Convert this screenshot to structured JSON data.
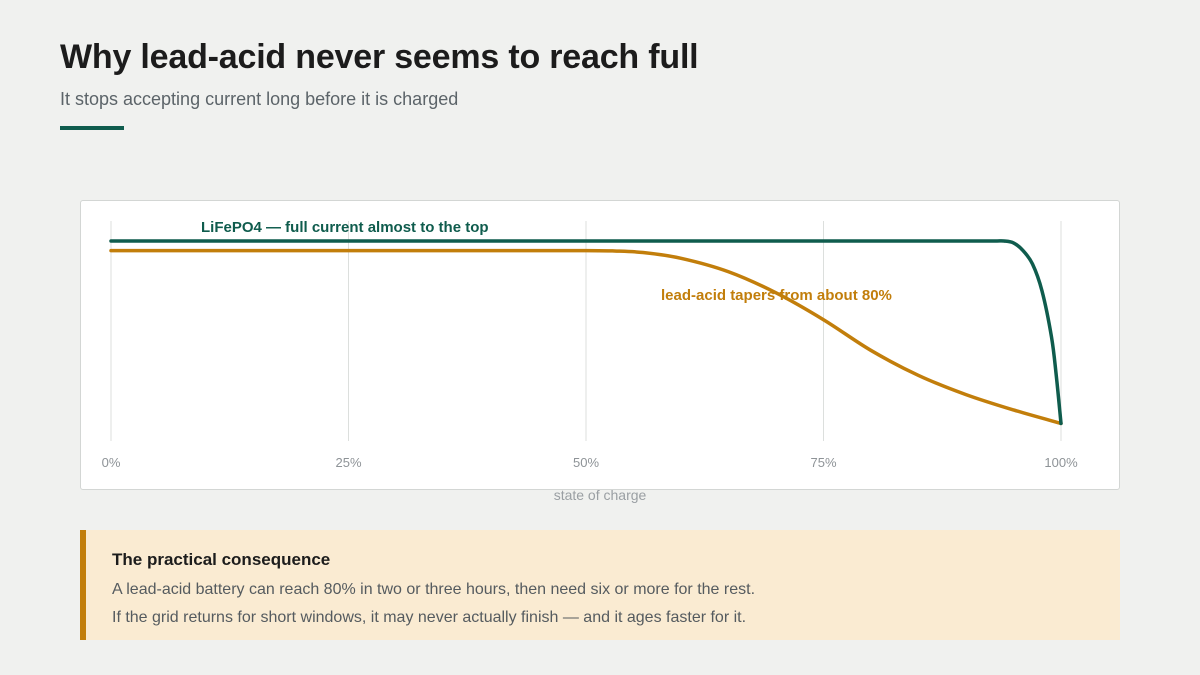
{
  "header": {
    "title": "Why lead-acid never seems to reach full",
    "subtitle": "It stops accepting current long before it is charged"
  },
  "colors": {
    "background": "#f0f1ef",
    "accent": "#0f5c4d",
    "lifepo4": "#0f5c4d",
    "lead_acid": "#c27e0b",
    "callout_bg": "#faebd2",
    "callout_border": "#c27e0b"
  },
  "chart_data": {
    "type": "line",
    "xlabel": "state of charge",
    "ylabel": "",
    "xlim": [
      0,
      100
    ],
    "ylim": [
      0,
      100
    ],
    "xticks": [
      0,
      25,
      50,
      75,
      100
    ],
    "xtick_labels": [
      "0%",
      "25%",
      "50%",
      "75%",
      "100%"
    ],
    "grid": "vertical",
    "legend": "none",
    "series": [
      {
        "key": "lifepo4",
        "color": "#0f5c4d",
        "label": "LiFePO4 — full current almost to the top",
        "x": [
          0,
          10,
          20,
          30,
          40,
          50,
          60,
          70,
          80,
          90,
          93,
          94,
          95,
          96,
          97,
          98,
          99,
          99.5,
          100
        ],
        "y": [
          100,
          100,
          100,
          100,
          100,
          100,
          100,
          100,
          100,
          100,
          100,
          100,
          99,
          95,
          88,
          74,
          50,
          30,
          5
        ]
      },
      {
        "key": "lead_acid",
        "color": "#c27e0b",
        "label": "lead-acid tapers from about 80%",
        "x": [
          0,
          10,
          20,
          30,
          40,
          50,
          53,
          56,
          60,
          65,
          70,
          75,
          80,
          85,
          90,
          95,
          100
        ],
        "y": [
          95,
          95,
          95,
          95,
          95,
          95,
          94.8,
          94,
          91,
          84,
          73,
          59,
          43,
          30,
          20,
          12,
          5
        ]
      }
    ]
  },
  "callout": {
    "heading": "The practical consequence",
    "line1": "A lead-acid battery can reach 80% in two or three hours, then need six or more for the rest.",
    "line2": "If the grid returns for short windows, it may never actually finish — and it ages faster for it."
  }
}
